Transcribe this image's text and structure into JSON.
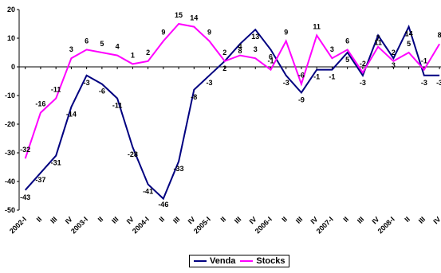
{
  "chart_data": {
    "type": "line",
    "categories": [
      "2002-I",
      "II",
      "III",
      "IV",
      "2003-I",
      "II",
      "III",
      "IV",
      "2004-I",
      "II",
      "III",
      "IV",
      "2005-I",
      "II",
      "III",
      "IV",
      "2006-I",
      "II",
      "III",
      "IV",
      "2007-I",
      "II",
      "III",
      "IV",
      "2008-I",
      "II",
      "III",
      "IV"
    ],
    "series": [
      {
        "name": "Venda",
        "color": "#000080",
        "values": [
          -43,
          -37,
          -31,
          -14,
          -3,
          -6,
          -11,
          -28,
          -41,
          -46,
          -33,
          -8,
          -3,
          2,
          8,
          13,
          6,
          -3,
          -9,
          -1,
          -1,
          5,
          -3,
          11,
          3,
          14,
          -3,
          -3
        ]
      },
      {
        "name": "Stocks",
        "color": "#FF00FF",
        "values": [
          -32,
          -16,
          -11,
          3,
          6,
          5,
          4,
          1,
          2,
          9,
          15,
          14,
          9,
          2,
          4,
          3,
          -1,
          9,
          -6,
          11,
          3,
          6,
          -2,
          7,
          2,
          5,
          -1,
          8
        ]
      }
    ],
    "ylim": [
      -50,
      20
    ],
    "yticks": [
      20,
      10,
      0,
      -10,
      -20,
      -30,
      -40,
      -50
    ],
    "grid": false,
    "legend_position": "bottom-center"
  },
  "legend": {
    "venda": "Venda",
    "stocks": "Stocks"
  }
}
